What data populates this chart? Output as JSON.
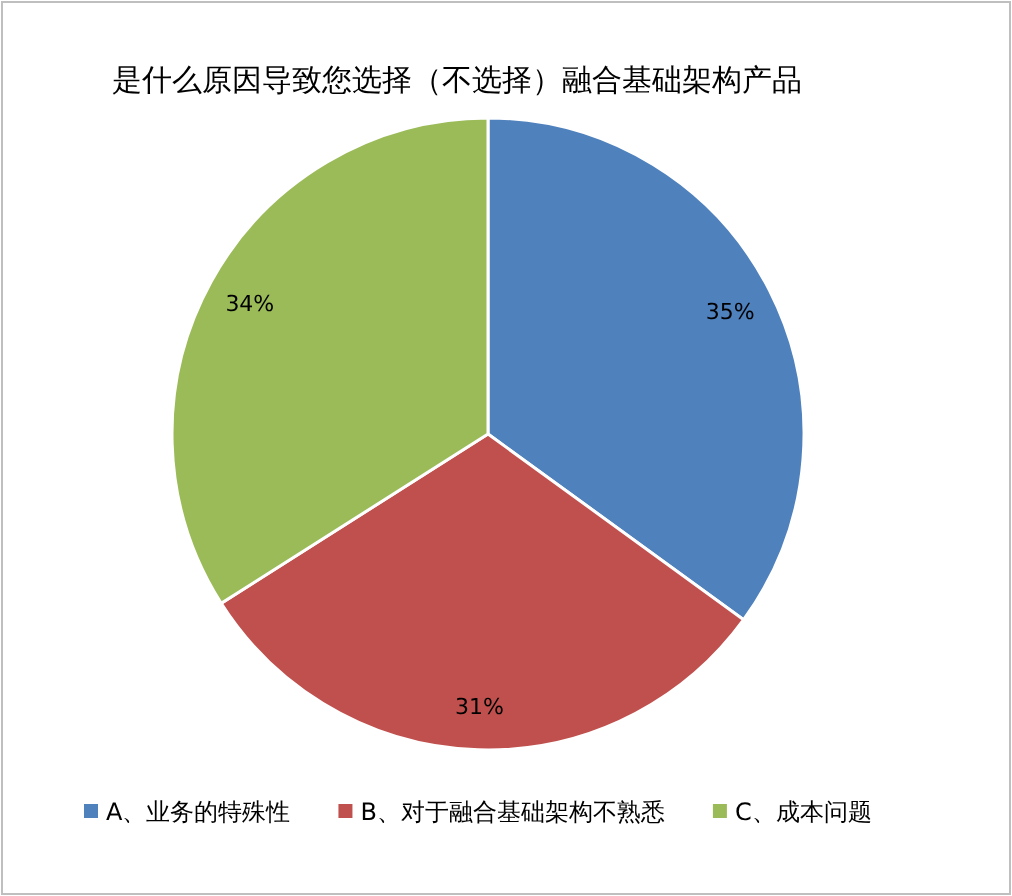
{
  "chart_data": {
    "type": "pie",
    "title": "是什么原因导致您选择（不选择）融合基础架构产品",
    "categories": [
      "A、业务的特殊性",
      "B、对于融合基础架构不熟悉",
      "C、成本问题"
    ],
    "values": [
      35,
      31,
      34
    ],
    "value_labels": [
      "35%",
      "31%",
      "34%"
    ],
    "colors": [
      "#4f81bd",
      "#c0504d",
      "#9bbb59"
    ],
    "legend": "bottom"
  }
}
